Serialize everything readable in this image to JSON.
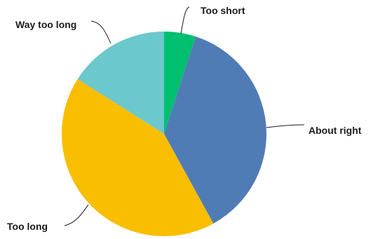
{
  "chart_data": {
    "type": "pie",
    "start": "top",
    "direction": "clockwise",
    "slices": [
      {
        "label": "Too short",
        "value": 5,
        "color": "#00bf6f"
      },
      {
        "label": "About right",
        "value": 37,
        "color": "#507cb6"
      },
      {
        "label": "Too long",
        "value": 42,
        "color": "#f9be00"
      },
      {
        "label": "Way too long",
        "value": 16,
        "color": "#6bc8cd"
      }
    ]
  }
}
